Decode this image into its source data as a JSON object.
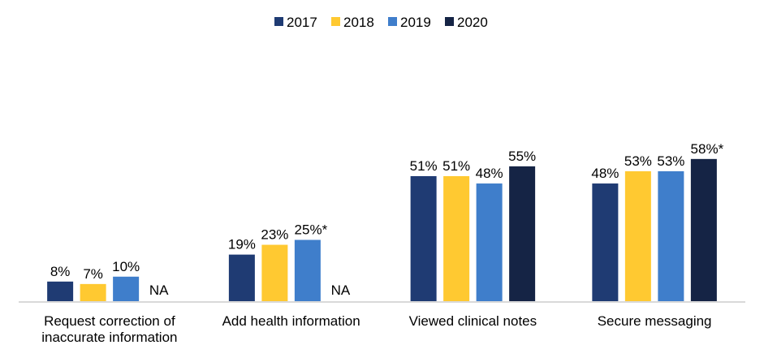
{
  "chart_data": {
    "type": "bar",
    "title": "",
    "xlabel": "",
    "ylabel": "",
    "ylim": [
      0,
      100
    ],
    "grid": false,
    "legend_position": "top-center",
    "categories": [
      [
        "Request correction of",
        "inaccurate information"
      ],
      [
        "Add health information"
      ],
      [
        "Viewed clinical notes"
      ],
      [
        "Secure messaging"
      ]
    ],
    "series": [
      {
        "name": "2017",
        "color": "#1f3b73",
        "values": [
          8,
          19,
          51,
          48
        ],
        "labels": [
          "8%",
          "19%",
          "51%",
          "48%"
        ]
      },
      {
        "name": "2018",
        "color": "#ffc931",
        "values": [
          7,
          23,
          51,
          53
        ],
        "labels": [
          "7%",
          "23%",
          "51%",
          "53%"
        ]
      },
      {
        "name": "2019",
        "color": "#3f7ecb",
        "values": [
          10,
          25,
          48,
          53
        ],
        "labels": [
          "10%",
          "25%*",
          "48%",
          "53%"
        ]
      },
      {
        "name": "2020",
        "color": "#152445",
        "values": [
          null,
          null,
          55,
          58
        ],
        "labels": [
          "NA",
          "NA",
          "55%",
          "58%*"
        ]
      }
    ],
    "axis_color": "#d9d9d9"
  }
}
